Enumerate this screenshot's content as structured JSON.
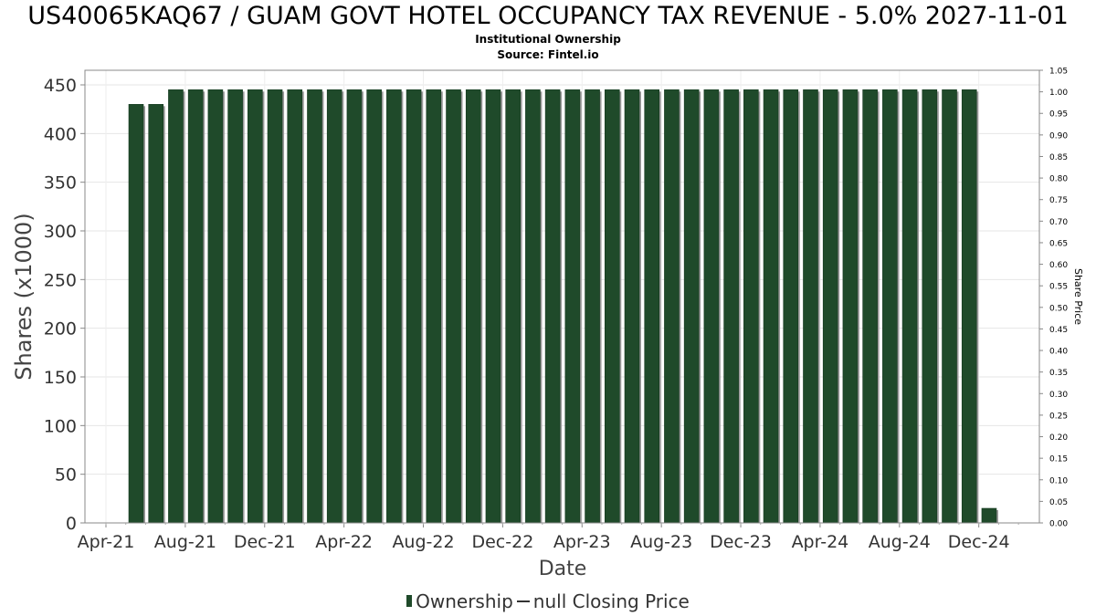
{
  "chart_data": {
    "type": "bar",
    "title": "US40065KAQ67 / GUAM GOVT HOTEL OCCUPANCY TAX REVENUE - 5.0% 2027-11-01",
    "subtitle": "Institutional Ownership",
    "source": "Source: Fintel.io",
    "xlabel": "Date",
    "ylabel": "Shares (x1000)",
    "y2label": "Share Price",
    "ylim": [
      0,
      465
    ],
    "y2lim": [
      0,
      1.05
    ],
    "yticks": [
      0,
      50,
      100,
      150,
      200,
      250,
      300,
      350,
      400,
      450
    ],
    "y2ticks": [
      "0.00",
      "0.05",
      "0.10",
      "0.15",
      "0.20",
      "0.25",
      "0.30",
      "0.35",
      "0.40",
      "0.45",
      "0.50",
      "0.55",
      "0.60",
      "0.65",
      "0.70",
      "0.75",
      "0.80",
      "0.85",
      "0.90",
      "0.95",
      "1.00",
      "1.05"
    ],
    "xticks": [
      "Apr-21",
      "Aug-21",
      "Dec-21",
      "Apr-22",
      "Aug-22",
      "Dec-22",
      "Apr-23",
      "Aug-23",
      "Dec-23",
      "Apr-24",
      "Aug-24",
      "Dec-24"
    ],
    "grid": true,
    "legend_position": "bottom",
    "series": [
      {
        "name": "Ownership",
        "color": "#1f4a2a",
        "values": [
          430,
          430,
          445,
          445,
          445,
          445,
          445,
          445,
          445,
          445,
          445,
          445,
          445,
          445,
          445,
          445,
          445,
          445,
          445,
          445,
          445,
          445,
          445,
          445,
          445,
          445,
          445,
          445,
          445,
          445,
          445,
          445,
          445,
          445,
          445,
          445,
          445,
          445,
          445,
          445,
          445,
          445,
          445,
          15
        ]
      }
    ],
    "legend": [
      "Ownership",
      "null Closing Price"
    ]
  }
}
